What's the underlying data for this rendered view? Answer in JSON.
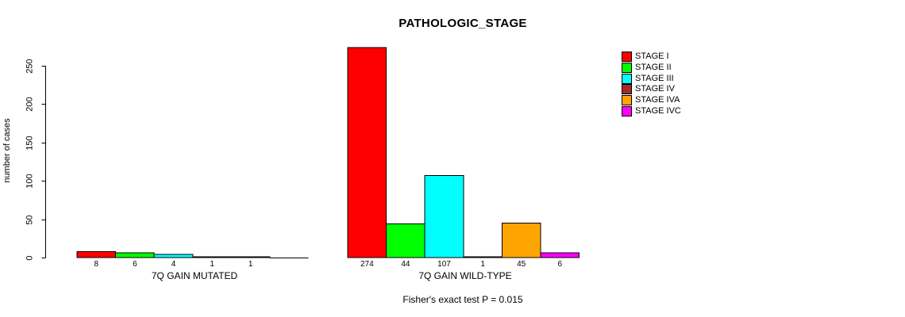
{
  "chart_data": {
    "type": "bar",
    "title": "PATHOLOGIC_STAGE",
    "ylabel": "number of cases",
    "annotation": "Fisher's exact test P = 0.015",
    "ylim": [
      0,
      280
    ],
    "yticks": [
      0,
      50,
      100,
      150,
      200,
      250
    ],
    "grid": false,
    "legend_position": "top-right",
    "stages": [
      "STAGE I",
      "STAGE II",
      "STAGE III",
      "STAGE IV",
      "STAGE IVA",
      "STAGE IVC"
    ],
    "colors": [
      "#FF0000",
      "#00FF00",
      "#00FFFF",
      "#A52A2A",
      "#FFA500",
      "#FF00FF"
    ],
    "groups": [
      {
        "label": "7Q GAIN MUTATED",
        "values": [
          8,
          6,
          4,
          1,
          1,
          0
        ],
        "value_labels": [
          "8",
          "6",
          "4",
          "1",
          "1",
          ""
        ]
      },
      {
        "label": "7Q GAIN WILD-TYPE",
        "values": [
          274,
          44,
          107,
          1,
          45,
          6
        ],
        "value_labels": [
          "274",
          "44",
          "107",
          "1",
          "45",
          "6"
        ]
      }
    ]
  }
}
